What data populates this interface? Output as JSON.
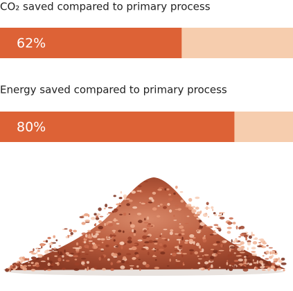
{
  "chart_data": [
    {
      "type": "bar",
      "title": "CO₂ saved compared to primary process",
      "values": [
        62
      ],
      "value_labels": [
        "62%"
      ],
      "xlim": [
        0,
        100
      ],
      "color": "#dd6236",
      "track_color": "#f6cdae"
    },
    {
      "type": "bar",
      "title": "Energy saved compared to primary process",
      "values": [
        80
      ],
      "value_labels": [
        "80%"
      ],
      "xlim": [
        0,
        100
      ],
      "color": "#dd6236",
      "track_color": "#f6cdae"
    }
  ]
}
